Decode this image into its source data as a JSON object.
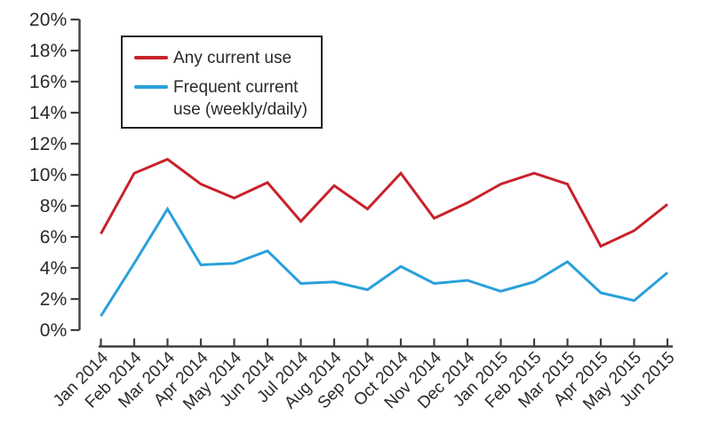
{
  "chart_data": {
    "type": "line",
    "title": "",
    "xlabel": "",
    "ylabel": "",
    "categories": [
      "Jan 2014",
      "Feb 2014",
      "Mar 2014",
      "Apr 2014",
      "May 2014",
      "Jun 2014",
      "Jul 2014",
      "Aug 2014",
      "Sep 2014",
      "Oct 2014",
      "Nov 2014",
      "Dec 2014",
      "Jan 2015",
      "Feb 2015",
      "Mar 2015",
      "Apr 2015",
      "May 2015",
      "Jun 2015"
    ],
    "series": [
      {
        "name": "Any current use",
        "color": "#c8222b",
        "values": [
          6.2,
          10.1,
          11.0,
          9.4,
          8.5,
          9.5,
          7.0,
          9.3,
          7.8,
          10.1,
          7.2,
          8.2,
          9.4,
          10.1,
          9.4,
          5.4,
          6.4,
          8.1
        ]
      },
      {
        "name": "Frequent current use (weekly/daily)",
        "color": "#2aa0da",
        "values": [
          0.9,
          4.3,
          7.8,
          4.2,
          4.3,
          5.1,
          3.0,
          3.1,
          2.6,
          4.1,
          3.0,
          3.2,
          2.5,
          3.1,
          4.4,
          2.4,
          1.9,
          3.7
        ]
      }
    ],
    "ylim": [
      0,
      20
    ],
    "ytick_step": 2,
    "ytick_suffix": "%",
    "grid": false,
    "legend_position": "top-left-inside"
  },
  "legend": {
    "items": [
      {
        "label": "Any current use",
        "color": "#c8222b"
      },
      {
        "label": "Frequent current\nuse (weekly/daily)",
        "color": "#2aa0da"
      }
    ]
  },
  "colors": {
    "axis": "#403f3e",
    "text": "#2b2a29",
    "background": "#ffffff"
  }
}
